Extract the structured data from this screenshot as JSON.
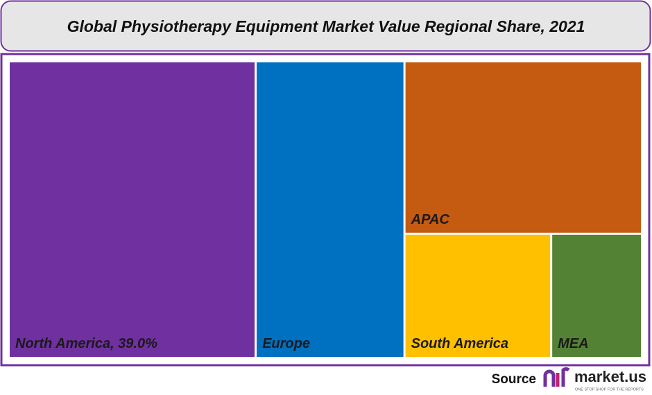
{
  "chart_data": {
    "type": "treemap",
    "title": "Global Physiotherapy Equipment Market Value Regional Share, 2021",
    "categories": [
      "North America",
      "Europe",
      "APAC",
      "South America",
      "MEA"
    ],
    "values": [
      39.0,
      23.5,
      21.8,
      9.7,
      6.0
    ],
    "value_labels": [
      "North America, 39.0%",
      null,
      null,
      null,
      null
    ],
    "colors": [
      "#7030a0",
      "#0070c0",
      "#c55a11",
      "#ffc000",
      "#548235"
    ]
  },
  "footer": {
    "source": "Source",
    "brand": "market.us",
    "tagline": "ONE STOP SHOP FOR THE REPORTS"
  }
}
